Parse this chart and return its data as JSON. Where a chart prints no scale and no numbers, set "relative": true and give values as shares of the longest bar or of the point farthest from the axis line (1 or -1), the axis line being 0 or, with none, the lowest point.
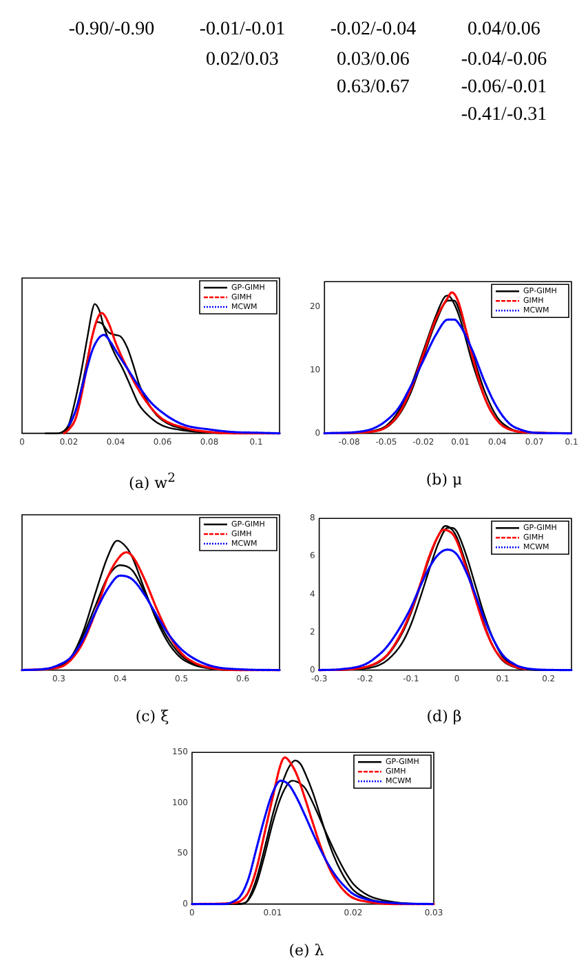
{
  "chart_data": [
    {
      "type": "other",
      "cells": [
        [
          "-0.90/-0.90",
          "-0.01/-0.01",
          "-0.02/-0.04",
          "0.04/0.06"
        ],
        [
          null,
          "0.02/0.03",
          "0.03/0.06",
          "-0.04/-0.06"
        ],
        [
          null,
          null,
          "0.63/0.67",
          "-0.06/-0.01"
        ],
        [
          null,
          null,
          null,
          "-0.41/-0.31"
        ]
      ]
    },
    {
      "type": "line",
      "title": "(a)  w$^{2}$",
      "relative": true,
      "xlim": [
        0,
        0.11
      ],
      "xticks": [
        0,
        0.02,
        0.04,
        0.06,
        0.08,
        0.1
      ],
      "legend": "top right",
      "grid": false,
      "series": [
        {
          "name": "GP-GIMH",
          "color": "#000000",
          "line_style": "solid",
          "x": [
            0.01,
            0.015,
            0.018,
            0.02,
            0.022,
            0.025,
            0.028,
            0.03,
            0.031,
            0.033,
            0.035,
            0.038,
            0.04,
            0.043,
            0.046,
            0.05,
            0.055,
            0.06,
            0.07,
            0.08,
            0.09,
            0.11
          ],
          "values": [
            0,
            0,
            0.02,
            0.07,
            0.2,
            0.45,
            0.75,
            0.95,
            1,
            0.95,
            0.82,
            0.68,
            0.6,
            0.5,
            0.38,
            0.22,
            0.12,
            0.06,
            0.02,
            0.005,
            0,
            0
          ]
        },
        {
          "color": "#000000",
          "line_style": "solid",
          "x": [
            0.018,
            0.02,
            0.023,
            0.026,
            0.03,
            0.032,
            0.034,
            0.037,
            0.04,
            0.042,
            0.045,
            0.048,
            0.05,
            0.055,
            0.06,
            0.07,
            0.08,
            0.09,
            0.11
          ],
          "values": [
            0.01,
            0.05,
            0.18,
            0.4,
            0.75,
            0.86,
            0.85,
            0.78,
            0.76,
            0.75,
            0.66,
            0.5,
            0.38,
            0.2,
            0.1,
            0.03,
            0.01,
            0,
            0
          ]
        },
        {
          "name": "GIMH",
          "color": "#ff0000",
          "line_style": "dashed",
          "x": [
            0.018,
            0.02,
            0.023,
            0.026,
            0.03,
            0.034,
            0.037,
            0.04,
            0.045,
            0.05,
            0.055,
            0.06,
            0.07,
            0.08,
            0.09,
            0.11
          ],
          "values": [
            0,
            0.03,
            0.12,
            0.35,
            0.75,
            0.93,
            0.85,
            0.7,
            0.5,
            0.33,
            0.2,
            0.11,
            0.04,
            0.01,
            0,
            0
          ]
        },
        {
          "name": "MCWM",
          "color": "#0000ff",
          "line_style": "dotted",
          "x": [
            0.02,
            0.023,
            0.026,
            0.03,
            0.033,
            0.035,
            0.038,
            0.04,
            0.045,
            0.05,
            0.055,
            0.06,
            0.065,
            0.07,
            0.08,
            0.09,
            0.1,
            0.11
          ],
          "values": [
            0.06,
            0.18,
            0.38,
            0.64,
            0.74,
            0.76,
            0.7,
            0.64,
            0.5,
            0.36,
            0.24,
            0.16,
            0.1,
            0.06,
            0.03,
            0.01,
            0.005,
            0
          ]
        }
      ]
    },
    {
      "type": "line",
      "title": "(b)  μ",
      "xlim": [
        -0.1,
        0.1
      ],
      "xticks": [
        -0.08,
        -0.05,
        -0.02,
        0.01,
        0.04,
        0.07,
        0.1
      ],
      "ylim": [
        0,
        24
      ],
      "yticks": [
        0,
        10,
        20
      ],
      "legend": "top right",
      "grid": false,
      "series": [
        {
          "name": "GP-GIMH",
          "color": "#000000",
          "line_style": "solid",
          "x": [
            -0.1,
            -0.07,
            -0.06,
            -0.05,
            -0.04,
            -0.03,
            -0.02,
            -0.01,
            -0.003,
            0,
            0.005,
            0.01,
            0.02,
            0.03,
            0.04,
            0.05,
            0.06,
            0.07,
            0.1
          ],
          "values": [
            0,
            0.1,
            0.4,
            1.2,
            3.5,
            7.5,
            13,
            18.5,
            21.5,
            21.8,
            20.5,
            18,
            11,
            5.5,
            2,
            0.6,
            0.2,
            0.1,
            0
          ]
        },
        {
          "color": "#000000",
          "line_style": "solid",
          "x": [
            -0.09,
            -0.06,
            -0.05,
            -0.04,
            -0.03,
            -0.02,
            -0.01,
            0,
            0.005,
            0.01,
            0.02,
            0.03,
            0.04,
            0.05,
            0.06,
            0.07,
            0.09
          ],
          "values": [
            0,
            0.3,
            0.9,
            2.8,
            6.5,
            12,
            17.5,
            21,
            21,
            19,
            12.5,
            6.5,
            2.5,
            0.8,
            0.2,
            0.1,
            0
          ]
        },
        {
          "name": "GIMH",
          "color": "#ff0000",
          "line_style": "dashed",
          "x": [
            -0.1,
            -0.06,
            -0.05,
            -0.04,
            -0.03,
            -0.02,
            -0.01,
            0,
            0.003,
            0.008,
            0.015,
            0.02,
            0.03,
            0.04,
            0.05,
            0.07,
            0.1
          ],
          "values": [
            0,
            0.3,
            1,
            3,
            7,
            12.5,
            18,
            21.5,
            22.3,
            21,
            16,
            12,
            5.5,
            2,
            0.6,
            0.1,
            0
          ]
        },
        {
          "name": "MCWM",
          "color": "#0000ff",
          "line_style": "dotted",
          "x": [
            -0.1,
            -0.07,
            -0.06,
            -0.05,
            -0.04,
            -0.03,
            -0.02,
            -0.01,
            0,
            0.005,
            0.01,
            0.02,
            0.03,
            0.04,
            0.05,
            0.06,
            0.07,
            0.1
          ],
          "values": [
            0,
            0.3,
            0.8,
            2,
            4,
            7.5,
            11.5,
            15.5,
            18,
            18,
            17,
            13,
            8,
            4,
            1.5,
            0.5,
            0.1,
            0
          ]
        }
      ]
    },
    {
      "type": "line",
      "title": "(c)  ξ",
      "relative": true,
      "xlim": [
        0.24,
        0.66
      ],
      "xticks": [
        0.3,
        0.4,
        0.5,
        0.6
      ],
      "legend": "top right",
      "grid": false,
      "series": [
        {
          "name": "GP-GIMH",
          "color": "#000000",
          "line_style": "solid",
          "x": [
            0.24,
            0.28,
            0.3,
            0.32,
            0.34,
            0.36,
            0.38,
            0.395,
            0.41,
            0.42,
            0.44,
            0.46,
            0.48,
            0.5,
            0.52,
            0.55,
            0.6,
            0.66
          ],
          "values": [
            0,
            0.005,
            0.03,
            0.1,
            0.3,
            0.6,
            0.88,
            1,
            0.95,
            0.87,
            0.62,
            0.38,
            0.2,
            0.09,
            0.04,
            0.01,
            0,
            0
          ]
        },
        {
          "color": "#000000",
          "line_style": "solid",
          "x": [
            0.25,
            0.3,
            0.32,
            0.34,
            0.36,
            0.38,
            0.4,
            0.42,
            0.44,
            0.46,
            0.48,
            0.5,
            0.52,
            0.55,
            0.6,
            0.64
          ],
          "values": [
            0,
            0.03,
            0.1,
            0.27,
            0.5,
            0.72,
            0.81,
            0.77,
            0.6,
            0.4,
            0.23,
            0.11,
            0.05,
            0.01,
            0,
            0
          ]
        },
        {
          "name": "GIMH",
          "color": "#ff0000",
          "line_style": "dashed",
          "x": [
            0.24,
            0.3,
            0.32,
            0.34,
            0.36,
            0.38,
            0.4,
            0.41,
            0.42,
            0.44,
            0.46,
            0.48,
            0.5,
            0.52,
            0.55,
            0.6,
            0.66
          ],
          "values": [
            0,
            0.02,
            0.08,
            0.22,
            0.45,
            0.72,
            0.88,
            0.91,
            0.88,
            0.7,
            0.47,
            0.27,
            0.13,
            0.06,
            0.015,
            0,
            0
          ]
        },
        {
          "name": "MCWM",
          "color": "#0000ff",
          "line_style": "dotted",
          "x": [
            0.24,
            0.28,
            0.3,
            0.32,
            0.34,
            0.36,
            0.38,
            0.4,
            0.42,
            0.44,
            0.46,
            0.48,
            0.5,
            0.52,
            0.55,
            0.6,
            0.66
          ],
          "values": [
            0,
            0.01,
            0.04,
            0.1,
            0.24,
            0.45,
            0.63,
            0.73,
            0.7,
            0.58,
            0.42,
            0.27,
            0.16,
            0.09,
            0.03,
            0.005,
            0
          ]
        }
      ]
    },
    {
      "type": "line",
      "title": "(d)  β",
      "xlim": [
        -0.3,
        0.25
      ],
      "xticks": [
        -0.3,
        -0.2,
        -0.1,
        0,
        0.1,
        0.2
      ],
      "ylim": [
        0,
        8
      ],
      "yticks": [
        0,
        2,
        4,
        6,
        8
      ],
      "legend": "top right",
      "grid": false,
      "series": [
        {
          "name": "GP-GIMH",
          "color": "#000000",
          "line_style": "solid",
          "x": [
            -0.3,
            -0.25,
            -0.2,
            -0.17,
            -0.15,
            -0.12,
            -0.1,
            -0.08,
            -0.06,
            -0.04,
            -0.025,
            -0.01,
            0,
            0.02,
            0.04,
            0.06,
            0.08,
            0.1,
            0.13,
            0.15,
            0.2,
            0.25
          ],
          "values": [
            0,
            0.02,
            0.15,
            0.4,
            0.8,
            1.9,
            3,
            4.4,
            5.9,
            7.1,
            7.6,
            7.4,
            7,
            5.6,
            4,
            2.4,
            1.2,
            0.5,
            0.12,
            0.04,
            0,
            0
          ]
        },
        {
          "color": "#000000",
          "line_style": "solid",
          "x": [
            -0.28,
            -0.2,
            -0.17,
            -0.15,
            -0.12,
            -0.1,
            -0.08,
            -0.06,
            -0.04,
            -0.02,
            -0.01,
            0,
            0.02,
            0.04,
            0.06,
            0.08,
            0.1,
            0.13,
            0.15,
            0.2,
            0.23
          ],
          "values": [
            0,
            0.08,
            0.25,
            0.55,
            1.4,
            2.4,
            3.8,
            5.3,
            6.7,
            7.5,
            7.5,
            7.3,
            6.1,
            4.5,
            2.9,
            1.6,
            0.7,
            0.2,
            0.06,
            0,
            0
          ]
        },
        {
          "name": "GIMH",
          "color": "#ff0000",
          "line_style": "dashed",
          "x": [
            -0.3,
            -0.25,
            -0.2,
            -0.17,
            -0.15,
            -0.12,
            -0.1,
            -0.08,
            -0.06,
            -0.04,
            -0.03,
            -0.01,
            0,
            0.02,
            0.04,
            0.06,
            0.08,
            0.1,
            0.13,
            0.15
          ],
          "values": [
            0,
            0.02,
            0.15,
            0.45,
            0.85,
            2,
            3.1,
            4.5,
            6,
            7.1,
            7.4,
            7.2,
            6.8,
            5.4,
            3.8,
            2.3,
            1.2,
            0.55,
            0.15,
            0.05
          ]
        },
        {
          "name": "MCWM",
          "color": "#0000ff",
          "line_style": "dotted",
          "x": [
            -0.3,
            -0.25,
            -0.2,
            -0.17,
            -0.15,
            -0.12,
            -0.1,
            -0.08,
            -0.06,
            -0.04,
            -0.02,
            0,
            0.02,
            0.04,
            0.06,
            0.08,
            0.1,
            0.13,
            0.15,
            0.2,
            0.25
          ],
          "values": [
            0,
            0.05,
            0.3,
            0.8,
            1.3,
            2.4,
            3.3,
            4.4,
            5.4,
            6.1,
            6.35,
            6.1,
            5.2,
            4,
            2.7,
            1.6,
            0.8,
            0.25,
            0.1,
            0.01,
            0
          ]
        }
      ]
    },
    {
      "type": "line",
      "title": "(e)  λ",
      "xlim": [
        0,
        0.03
      ],
      "xticks": [
        0,
        0.01,
        0.02,
        0.03
      ],
      "ylim": [
        0,
        150
      ],
      "yticks": [
        0,
        50,
        100,
        150
      ],
      "legend": "top right",
      "grid": false,
      "series": [
        {
          "name": "GP-GIMH",
          "color": "#000000",
          "line_style": "solid",
          "x": [
            0,
            0.005,
            0.0065,
            0.007,
            0.008,
            0.009,
            0.01,
            0.011,
            0.012,
            0.0128,
            0.0135,
            0.014,
            0.015,
            0.016,
            0.017,
            0.018,
            0.019,
            0.02,
            0.022,
            0.025,
            0.03
          ],
          "values": [
            0,
            0,
            1,
            5,
            25,
            55,
            88,
            115,
            135,
            142,
            138,
            130,
            110,
            85,
            60,
            40,
            25,
            14,
            5,
            1,
            0
          ]
        },
        {
          "color": "#000000",
          "line_style": "solid",
          "x": [
            0.002,
            0.006,
            0.007,
            0.008,
            0.009,
            0.01,
            0.011,
            0.012,
            0.0125,
            0.013,
            0.014,
            0.015,
            0.016,
            0.017,
            0.018,
            0.019,
            0.02,
            0.022,
            0.025,
            0.028
          ],
          "values": [
            0,
            0,
            4,
            20,
            48,
            80,
            105,
            120,
            122,
            121,
            115,
            100,
            82,
            64,
            47,
            32,
            20,
            8,
            2,
            0
          ]
        },
        {
          "name": "GIMH",
          "color": "#ff0000",
          "line_style": "dashed",
          "x": [
            0,
            0.005,
            0.006,
            0.007,
            0.008,
            0.009,
            0.01,
            0.011,
            0.0115,
            0.012,
            0.013,
            0.014,
            0.015,
            0.016,
            0.017,
            0.018,
            0.019,
            0.02,
            0.022,
            0.025,
            0.03
          ],
          "values": [
            0,
            1,
            3,
            12,
            35,
            70,
            105,
            138,
            145,
            142,
            128,
            105,
            80,
            56,
            36,
            22,
            12,
            6,
            2,
            0,
            0
          ]
        },
        {
          "name": "MCWM",
          "color": "#0000ff",
          "line_style": "dotted",
          "x": [
            0,
            0.004,
            0.005,
            0.006,
            0.007,
            0.008,
            0.009,
            0.01,
            0.011,
            0.012,
            0.013,
            0.014,
            0.015,
            0.016,
            0.017,
            0.018,
            0.019,
            0.02,
            0.022,
            0.025,
            0.03
          ],
          "values": [
            0,
            0,
            2,
            8,
            25,
            55,
            85,
            110,
            122,
            118,
            105,
            88,
            70,
            53,
            38,
            26,
            17,
            10,
            4,
            1,
            0
          ]
        }
      ]
    }
  ]
}
